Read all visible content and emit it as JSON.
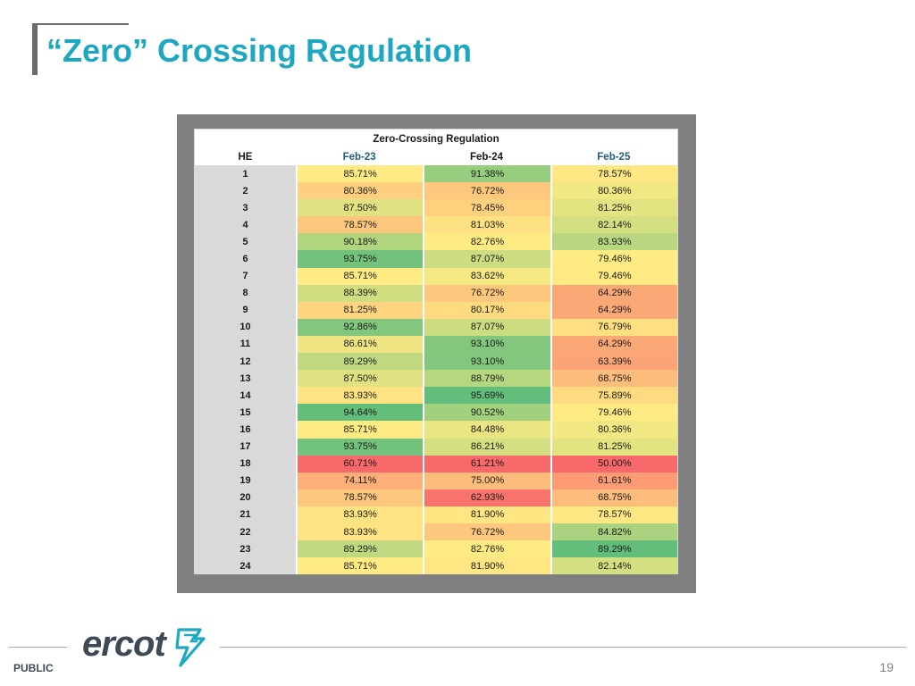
{
  "slide": {
    "title": "“Zero” Crossing Regulation",
    "footer_label": "PUBLIC",
    "page_number": "19",
    "logo_text": "ercot"
  },
  "table": {
    "title": "Zero-Crossing Regulation",
    "columns": [
      "HE",
      "Feb-23",
      "Feb-24",
      "Feb-25"
    ],
    "rows": [
      {
        "he": "1",
        "v": [
          "85.71%",
          "91.38%",
          "78.57%"
        ]
      },
      {
        "he": "2",
        "v": [
          "80.36%",
          "76.72%",
          "80.36%"
        ]
      },
      {
        "he": "3",
        "v": [
          "87.50%",
          "78.45%",
          "81.25%"
        ]
      },
      {
        "he": "4",
        "v": [
          "78.57%",
          "81.03%",
          "82.14%"
        ]
      },
      {
        "he": "5",
        "v": [
          "90.18%",
          "82.76%",
          "83.93%"
        ]
      },
      {
        "he": "6",
        "v": [
          "93.75%",
          "87.07%",
          "79.46%"
        ]
      },
      {
        "he": "7",
        "v": [
          "85.71%",
          "83.62%",
          "79.46%"
        ]
      },
      {
        "he": "8",
        "v": [
          "88.39%",
          "76.72%",
          "64.29%"
        ]
      },
      {
        "he": "9",
        "v": [
          "81.25%",
          "80.17%",
          "64.29%"
        ]
      },
      {
        "he": "10",
        "v": [
          "92.86%",
          "87.07%",
          "76.79%"
        ]
      },
      {
        "he": "11",
        "v": [
          "86.61%",
          "93.10%",
          "64.29%"
        ]
      },
      {
        "he": "12",
        "v": [
          "89.29%",
          "93.10%",
          "63.39%"
        ]
      },
      {
        "he": "13",
        "v": [
          "87.50%",
          "88.79%",
          "68.75%"
        ]
      },
      {
        "he": "14",
        "v": [
          "83.93%",
          "95.69%",
          "75.89%"
        ]
      },
      {
        "he": "15",
        "v": [
          "94.64%",
          "90.52%",
          "79.46%"
        ]
      },
      {
        "he": "16",
        "v": [
          "85.71%",
          "84.48%",
          "80.36%"
        ]
      },
      {
        "he": "17",
        "v": [
          "93.75%",
          "86.21%",
          "81.25%"
        ]
      },
      {
        "he": "18",
        "v": [
          "60.71%",
          "61.21%",
          "50.00%"
        ]
      },
      {
        "he": "19",
        "v": [
          "74.11%",
          "75.00%",
          "61.61%"
        ]
      },
      {
        "he": "20",
        "v": [
          "78.57%",
          "62.93%",
          "68.75%"
        ]
      },
      {
        "he": "21",
        "v": [
          "83.93%",
          "81.90%",
          "78.57%"
        ]
      },
      {
        "he": "22",
        "v": [
          "83.93%",
          "76.72%",
          "84.82%"
        ]
      },
      {
        "he": "23",
        "v": [
          "89.29%",
          "82.76%",
          "89.29%"
        ]
      },
      {
        "he": "24",
        "v": [
          "85.71%",
          "81.90%",
          "82.14%"
        ]
      }
    ],
    "color_scale": {
      "low": "#f8696b",
      "mid": "#ffeb84",
      "high": "#63be7b"
    }
  }
}
